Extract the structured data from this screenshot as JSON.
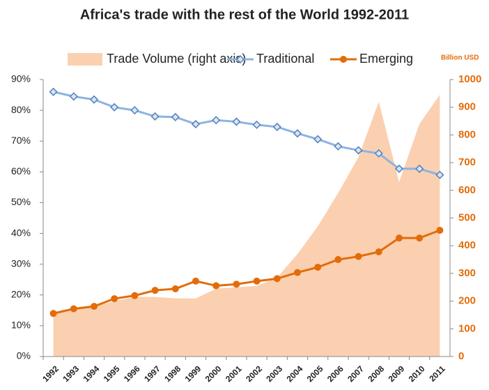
{
  "chart_data": {
    "type": "line-area",
    "title": "Africa's trade with the rest of the World 1992-2011",
    "annotation": "Billion USD",
    "categories": [
      "1992",
      "1993",
      "1994",
      "1995",
      "1996",
      "1997",
      "1998",
      "1999",
      "2000",
      "2001",
      "2002",
      "2003",
      "2004",
      "2005",
      "2006",
      "2007",
      "2008",
      "2009",
      "2010",
      "2011"
    ],
    "series": [
      {
        "name": "Trade Volume (right axis)",
        "color": "#fbd0b0",
        "axis": "y2",
        "kind": "area",
        "values": [
          160,
          170,
          180,
          200,
          215,
          215,
          210,
          210,
          245,
          250,
          255,
          285,
          370,
          470,
          590,
          720,
          920,
          630,
          840,
          945
        ]
      },
      {
        "name": "Traditional",
        "color": "#8db3e2",
        "marker_color": "#4f81bd",
        "kind": "line",
        "marker": "diamond",
        "values": [
          86,
          84.5,
          83.5,
          81,
          80,
          78,
          77.8,
          75.5,
          76.8,
          76.3,
          75.3,
          74.6,
          72.5,
          70.6,
          68.3,
          67,
          66,
          61,
          61,
          59
        ]
      },
      {
        "name": "Emerging",
        "color": "#e36c09",
        "marker_color": "#e36c09",
        "kind": "line",
        "marker": "circle",
        "values": [
          14,
          15.5,
          16.3,
          18.8,
          19.8,
          21.5,
          22,
          24.5,
          23,
          23.5,
          24.5,
          25.3,
          27.3,
          29,
          31.5,
          32.5,
          34,
          38.5,
          38.5,
          41
        ]
      }
    ],
    "ylim": [
      0,
      90
    ],
    "yticks": [
      {
        "value": 0,
        "label": "0%"
      },
      {
        "value": 10,
        "label": "10%"
      },
      {
        "value": 20,
        "label": "20%"
      },
      {
        "value": 30,
        "label": "30%"
      },
      {
        "value": 40,
        "label": "40%"
      },
      {
        "value": 50,
        "label": "50%"
      },
      {
        "value": 60,
        "label": "60%"
      },
      {
        "value": 70,
        "label": "70%"
      },
      {
        "value": 80,
        "label": "80%"
      },
      {
        "value": 90,
        "label": "90%"
      }
    ],
    "y2lim": [
      0,
      1000
    ],
    "y2ticks": [
      0,
      100,
      200,
      300,
      400,
      500,
      600,
      700,
      800,
      900,
      1000
    ]
  }
}
